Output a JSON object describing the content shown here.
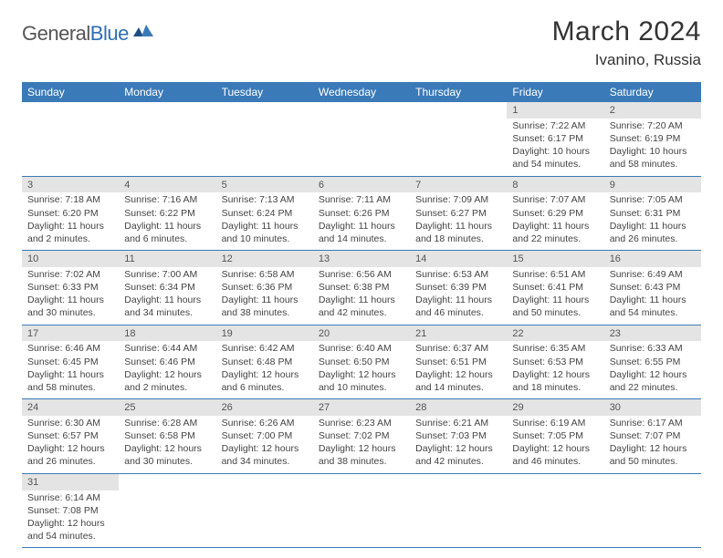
{
  "logo": {
    "general": "General",
    "blue": "Blue"
  },
  "title": "March 2024",
  "location": "Ivanino, Russia",
  "colors": {
    "header_bg": "#3a7ab8",
    "header_text": "#ffffff",
    "daynum_bg": "#e4e4e4",
    "row_divider": "#3a7ab8",
    "text": "#444444",
    "logo_blue": "#2b6fb5"
  },
  "weekdays": [
    "Sunday",
    "Monday",
    "Tuesday",
    "Wednesday",
    "Thursday",
    "Friday",
    "Saturday"
  ],
  "weeks": [
    {
      "days": [
        null,
        null,
        null,
        null,
        null,
        {
          "n": "1",
          "sr": "Sunrise: 7:22 AM",
          "ss": "Sunset: 6:17 PM",
          "d1": "Daylight: 10 hours",
          "d2": "and 54 minutes."
        },
        {
          "n": "2",
          "sr": "Sunrise: 7:20 AM",
          "ss": "Sunset: 6:19 PM",
          "d1": "Daylight: 10 hours",
          "d2": "and 58 minutes."
        }
      ]
    },
    {
      "days": [
        {
          "n": "3",
          "sr": "Sunrise: 7:18 AM",
          "ss": "Sunset: 6:20 PM",
          "d1": "Daylight: 11 hours",
          "d2": "and 2 minutes."
        },
        {
          "n": "4",
          "sr": "Sunrise: 7:16 AM",
          "ss": "Sunset: 6:22 PM",
          "d1": "Daylight: 11 hours",
          "d2": "and 6 minutes."
        },
        {
          "n": "5",
          "sr": "Sunrise: 7:13 AM",
          "ss": "Sunset: 6:24 PM",
          "d1": "Daylight: 11 hours",
          "d2": "and 10 minutes."
        },
        {
          "n": "6",
          "sr": "Sunrise: 7:11 AM",
          "ss": "Sunset: 6:26 PM",
          "d1": "Daylight: 11 hours",
          "d2": "and 14 minutes."
        },
        {
          "n": "7",
          "sr": "Sunrise: 7:09 AM",
          "ss": "Sunset: 6:27 PM",
          "d1": "Daylight: 11 hours",
          "d2": "and 18 minutes."
        },
        {
          "n": "8",
          "sr": "Sunrise: 7:07 AM",
          "ss": "Sunset: 6:29 PM",
          "d1": "Daylight: 11 hours",
          "d2": "and 22 minutes."
        },
        {
          "n": "9",
          "sr": "Sunrise: 7:05 AM",
          "ss": "Sunset: 6:31 PM",
          "d1": "Daylight: 11 hours",
          "d2": "and 26 minutes."
        }
      ]
    },
    {
      "days": [
        {
          "n": "10",
          "sr": "Sunrise: 7:02 AM",
          "ss": "Sunset: 6:33 PM",
          "d1": "Daylight: 11 hours",
          "d2": "and 30 minutes."
        },
        {
          "n": "11",
          "sr": "Sunrise: 7:00 AM",
          "ss": "Sunset: 6:34 PM",
          "d1": "Daylight: 11 hours",
          "d2": "and 34 minutes."
        },
        {
          "n": "12",
          "sr": "Sunrise: 6:58 AM",
          "ss": "Sunset: 6:36 PM",
          "d1": "Daylight: 11 hours",
          "d2": "and 38 minutes."
        },
        {
          "n": "13",
          "sr": "Sunrise: 6:56 AM",
          "ss": "Sunset: 6:38 PM",
          "d1": "Daylight: 11 hours",
          "d2": "and 42 minutes."
        },
        {
          "n": "14",
          "sr": "Sunrise: 6:53 AM",
          "ss": "Sunset: 6:39 PM",
          "d1": "Daylight: 11 hours",
          "d2": "and 46 minutes."
        },
        {
          "n": "15",
          "sr": "Sunrise: 6:51 AM",
          "ss": "Sunset: 6:41 PM",
          "d1": "Daylight: 11 hours",
          "d2": "and 50 minutes."
        },
        {
          "n": "16",
          "sr": "Sunrise: 6:49 AM",
          "ss": "Sunset: 6:43 PM",
          "d1": "Daylight: 11 hours",
          "d2": "and 54 minutes."
        }
      ]
    },
    {
      "days": [
        {
          "n": "17",
          "sr": "Sunrise: 6:46 AM",
          "ss": "Sunset: 6:45 PM",
          "d1": "Daylight: 11 hours",
          "d2": "and 58 minutes."
        },
        {
          "n": "18",
          "sr": "Sunrise: 6:44 AM",
          "ss": "Sunset: 6:46 PM",
          "d1": "Daylight: 12 hours",
          "d2": "and 2 minutes."
        },
        {
          "n": "19",
          "sr": "Sunrise: 6:42 AM",
          "ss": "Sunset: 6:48 PM",
          "d1": "Daylight: 12 hours",
          "d2": "and 6 minutes."
        },
        {
          "n": "20",
          "sr": "Sunrise: 6:40 AM",
          "ss": "Sunset: 6:50 PM",
          "d1": "Daylight: 12 hours",
          "d2": "and 10 minutes."
        },
        {
          "n": "21",
          "sr": "Sunrise: 6:37 AM",
          "ss": "Sunset: 6:51 PM",
          "d1": "Daylight: 12 hours",
          "d2": "and 14 minutes."
        },
        {
          "n": "22",
          "sr": "Sunrise: 6:35 AM",
          "ss": "Sunset: 6:53 PM",
          "d1": "Daylight: 12 hours",
          "d2": "and 18 minutes."
        },
        {
          "n": "23",
          "sr": "Sunrise: 6:33 AM",
          "ss": "Sunset: 6:55 PM",
          "d1": "Daylight: 12 hours",
          "d2": "and 22 minutes."
        }
      ]
    },
    {
      "days": [
        {
          "n": "24",
          "sr": "Sunrise: 6:30 AM",
          "ss": "Sunset: 6:57 PM",
          "d1": "Daylight: 12 hours",
          "d2": "and 26 minutes."
        },
        {
          "n": "25",
          "sr": "Sunrise: 6:28 AM",
          "ss": "Sunset: 6:58 PM",
          "d1": "Daylight: 12 hours",
          "d2": "and 30 minutes."
        },
        {
          "n": "26",
          "sr": "Sunrise: 6:26 AM",
          "ss": "Sunset: 7:00 PM",
          "d1": "Daylight: 12 hours",
          "d2": "and 34 minutes."
        },
        {
          "n": "27",
          "sr": "Sunrise: 6:23 AM",
          "ss": "Sunset: 7:02 PM",
          "d1": "Daylight: 12 hours",
          "d2": "and 38 minutes."
        },
        {
          "n": "28",
          "sr": "Sunrise: 6:21 AM",
          "ss": "Sunset: 7:03 PM",
          "d1": "Daylight: 12 hours",
          "d2": "and 42 minutes."
        },
        {
          "n": "29",
          "sr": "Sunrise: 6:19 AM",
          "ss": "Sunset: 7:05 PM",
          "d1": "Daylight: 12 hours",
          "d2": "and 46 minutes."
        },
        {
          "n": "30",
          "sr": "Sunrise: 6:17 AM",
          "ss": "Sunset: 7:07 PM",
          "d1": "Daylight: 12 hours",
          "d2": "and 50 minutes."
        }
      ]
    },
    {
      "days": [
        {
          "n": "31",
          "sr": "Sunrise: 6:14 AM",
          "ss": "Sunset: 7:08 PM",
          "d1": "Daylight: 12 hours",
          "d2": "and 54 minutes."
        },
        null,
        null,
        null,
        null,
        null,
        null
      ]
    }
  ]
}
